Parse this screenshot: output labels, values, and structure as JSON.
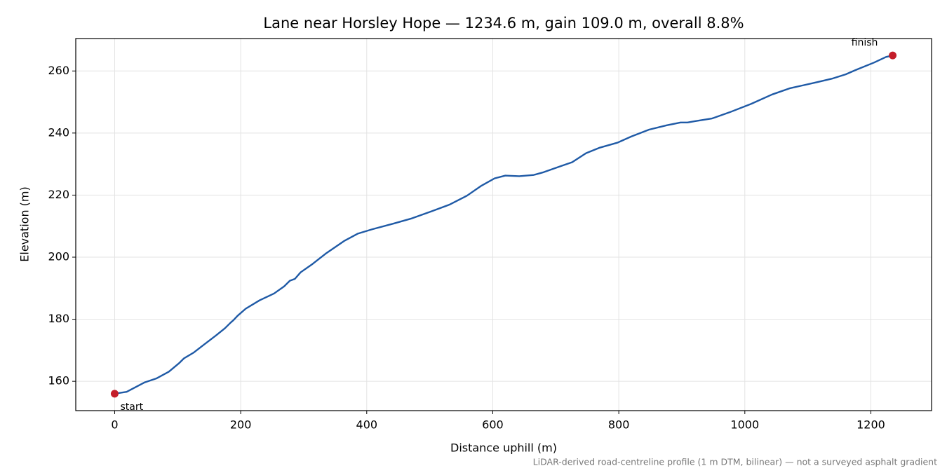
{
  "chart_data": {
    "type": "line",
    "title": "Lane near Horsley Hope — 1234.6 m, gain 109.0 m, overall 8.8%",
    "xlabel": "Distance uphill (m)",
    "ylabel": "Elevation (m)",
    "note": "LiDAR-derived road-centreline profile (1 m DTM, bilinear) — not a surveyed asphalt gradient",
    "color": "#1f5aa6",
    "grid": true,
    "x": [
      0,
      19,
      47,
      66,
      86,
      102,
      110,
      125,
      141,
      161,
      175,
      184,
      189,
      195,
      208,
      230,
      253,
      269,
      278,
      286,
      295,
      314,
      336,
      364,
      386,
      409,
      442,
      470,
      503,
      531,
      559,
      581,
      603,
      620,
      642,
      665,
      681,
      709,
      726,
      748,
      770,
      798,
      820,
      848,
      876,
      898,
      909,
      920,
      948,
      976,
      1010,
      1043,
      1071,
      1115,
      1138,
      1160,
      1177,
      1205,
      1224,
      1234.6
    ],
    "values": [
      156.0,
      156.6,
      159.6,
      160.9,
      163.1,
      165.8,
      167.4,
      169.2,
      171.7,
      174.8,
      177.1,
      178.9,
      179.8,
      181.1,
      183.4,
      186.1,
      188.3,
      190.6,
      192.4,
      193.0,
      195.1,
      197.8,
      201.3,
      205.2,
      207.6,
      209.0,
      210.8,
      212.4,
      214.8,
      216.9,
      219.8,
      222.9,
      225.4,
      226.3,
      226.1,
      226.5,
      227.4,
      229.4,
      230.6,
      233.5,
      235.3,
      236.9,
      238.9,
      241.1,
      242.5,
      243.4,
      243.4,
      243.8,
      244.7,
      246.7,
      249.4,
      252.4,
      254.4,
      256.4,
      257.5,
      258.9,
      260.4,
      262.7,
      264.5,
      265.0
    ],
    "highlights": {
      "x": [
        0,
        1234.6
      ],
      "values": [
        156.0,
        265.0
      ],
      "labels": [
        "start",
        "finish"
      ],
      "color": "#c41e2a"
    },
    "xlim": [
      -61.73,
      1296.33
    ],
    "ylim": [
      150.55,
      270.45
    ],
    "xticks": [
      0,
      200,
      400,
      600,
      800,
      1000,
      1200
    ],
    "yticks": [
      160,
      180,
      200,
      220,
      240,
      260
    ]
  }
}
